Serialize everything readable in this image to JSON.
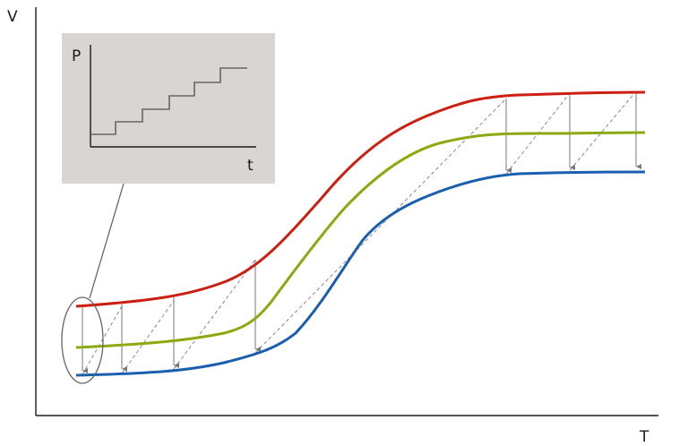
{
  "axes": {
    "y_label": "V",
    "x_label": "T"
  },
  "inset": {
    "y_label": "P",
    "x_label": "t"
  },
  "colors": {
    "upper_curve": "#cc1f10",
    "middle_curve": "#8aaa10",
    "lower_curve": "#1a5eb0",
    "connector_lines": "#777777",
    "inset_background": "#d8d5d2",
    "axis": "#1a1a1a"
  }
}
